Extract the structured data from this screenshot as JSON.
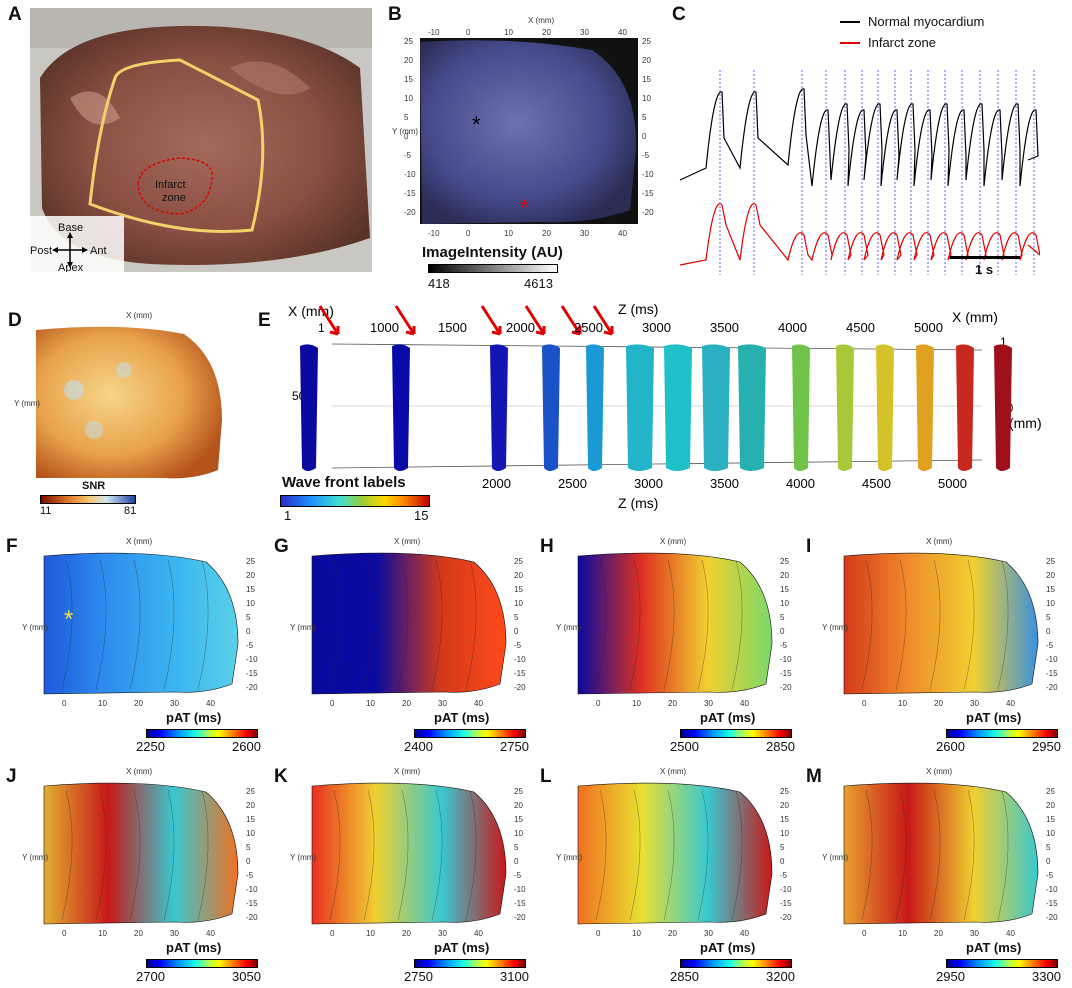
{
  "panels": {
    "A": {
      "letter": "A",
      "infarct_label_1": "Infarct",
      "infarct_label_2": "zone",
      "orient": {
        "top": "Base",
        "bottom": "Apex",
        "left": "Post",
        "right": "Ant"
      }
    },
    "B": {
      "letter": "B",
      "x_label": "X (mm)",
      "y_label": "Y (mm)",
      "colorbar_title": "ImageIntensity (AU)",
      "cb_min": "418",
      "cb_max": "4613",
      "marker_black": "*",
      "marker_red": "*"
    },
    "C": {
      "letter": "C",
      "legend": [
        {
          "label": "Normal myocardium",
          "color": "#000000"
        },
        {
          "label": "Infarct zone",
          "color": "#e00000"
        }
      ],
      "scale_bar": "1 s"
    },
    "D": {
      "letter": "D",
      "x_label": "X (mm)",
      "y_label": "Y (mm)",
      "colorbar_title": "SNR",
      "cb_min": "11",
      "cb_max": "81"
    },
    "E": {
      "letter": "E",
      "x_label_left": "X (mm)",
      "x_label_right": "X (mm)",
      "y_label": "Y (mm)",
      "z_label_top": "Z (ms)",
      "z_label_bottom": "Z (ms)",
      "tick_1": "1",
      "tick_50": "50",
      "z_top_ticks": [
        "1000",
        "1500",
        "2000",
        "2500",
        "3000",
        "3500",
        "4000",
        "4500",
        "5000"
      ],
      "z_bottom_ticks": [
        "2000",
        "2500",
        "3000",
        "3500",
        "4000",
        "4500",
        "5000"
      ],
      "legend_title": "Wave front labels",
      "legend_min": "1",
      "legend_max": "15"
    },
    "maps": [
      {
        "letter": "F",
        "cb_min": "2250",
        "cb_max": "2600",
        "cb_title": "pAT (ms)"
      },
      {
        "letter": "G",
        "cb_min": "2400",
        "cb_max": "2750",
        "cb_title": "pAT (ms)"
      },
      {
        "letter": "H",
        "cb_min": "2500",
        "cb_max": "2850",
        "cb_title": "pAT (ms)"
      },
      {
        "letter": "I",
        "cb_min": "2600",
        "cb_max": "2950",
        "cb_title": "pAT (ms)"
      },
      {
        "letter": "J",
        "cb_min": "2700",
        "cb_max": "3050",
        "cb_title": "pAT (ms)"
      },
      {
        "letter": "K",
        "cb_min": "2750",
        "cb_max": "3100",
        "cb_title": "pAT (ms)"
      },
      {
        "letter": "L",
        "cb_min": "2850",
        "cb_max": "3200",
        "cb_title": "pAT (ms)"
      },
      {
        "letter": "M",
        "cb_min": "2950",
        "cb_max": "3300",
        "cb_title": "pAT (ms)"
      }
    ],
    "map_axes": {
      "x_label": "X (mm)",
      "y_label": "Y (mm)",
      "x_ticks": [
        "0",
        "10",
        "20",
        "30",
        "40"
      ],
      "y_ticks": [
        "25",
        "20",
        "15",
        "10",
        "5",
        "0",
        "-5",
        "-10",
        "-15",
        "-20"
      ]
    },
    "B_axes": {
      "x_ticks": [
        "-10",
        "0",
        "10",
        "20",
        "30",
        "40"
      ],
      "y_ticks": [
        "25",
        "20",
        "15",
        "10",
        "5",
        "0",
        "-5",
        "-10",
        "-15",
        "-20"
      ]
    }
  },
  "colors": {
    "infarct_outline": "#e00000",
    "roi_outline": "#f2d16b",
    "arrow": "#e00000"
  }
}
